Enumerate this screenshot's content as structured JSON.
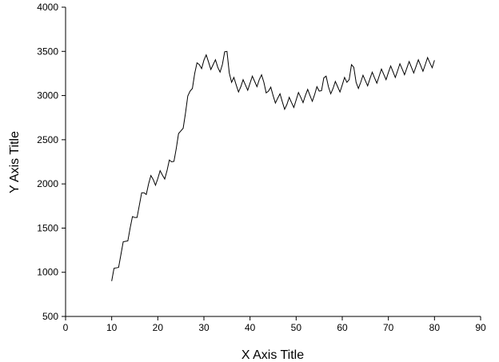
{
  "chart_data": {
    "type": "line",
    "x_label": "X Axis Title",
    "y_label": "Y Axis Title",
    "color": "#000000",
    "x": [
      10,
      10.5,
      11,
      11.5,
      12,
      12.5,
      13,
      13.5,
      14,
      14.5,
      15,
      15.5,
      16,
      16.5,
      17,
      17.5,
      18,
      18.5,
      19,
      19.5,
      20,
      20.5,
      21,
      21.5,
      22,
      22.5,
      23,
      23.5,
      24,
      24.5,
      25,
      25.5,
      26,
      26.5,
      27,
      27.5,
      28,
      28.5,
      29,
      29.5,
      30,
      30.5,
      31,
      31.5,
      32,
      32.5,
      33,
      33.5,
      34,
      34.5,
      35,
      35.5,
      36,
      36.5,
      37,
      37.5,
      38,
      38.5,
      39,
      39.5,
      40,
      40.5,
      41,
      41.5,
      42,
      42.5,
      43,
      43.5,
      44,
      44.5,
      45,
      45.5,
      46,
      46.5,
      47,
      47.5,
      48,
      48.5,
      49,
      49.5,
      50,
      50.5,
      51,
      51.5,
      52,
      52.5,
      53,
      53.5,
      54,
      54.5,
      55,
      55.5,
      56,
      56.5,
      57,
      57.5,
      58,
      58.5,
      59,
      59.5,
      60,
      60.5,
      61,
      61.5,
      62,
      62.5,
      63,
      63.5,
      64,
      64.5,
      65,
      65.5,
      66,
      66.5,
      67,
      67.5,
      68,
      68.5,
      69,
      69.5,
      70,
      70.5,
      71,
      71.5,
      72,
      72.5,
      73,
      73.5,
      74,
      74.5,
      75,
      75.5,
      76,
      76.5,
      77,
      77.5,
      78,
      78.5,
      79,
      79.5,
      80
    ],
    "values": [
      900,
      1045,
      1050,
      1055,
      1200,
      1345,
      1350,
      1355,
      1500,
      1630,
      1620,
      1620,
      1760,
      1900,
      1900,
      1880,
      2000,
      2095,
      2050,
      1985,
      2060,
      2150,
      2100,
      2055,
      2150,
      2270,
      2250,
      2255,
      2400,
      2570,
      2600,
      2630,
      2800,
      2995,
      3050,
      3080,
      3250,
      3370,
      3350,
      3305,
      3400,
      3460,
      3380,
      3295,
      3350,
      3405,
      3320,
      3265,
      3350,
      3495,
      3500,
      3255,
      3150,
      3205,
      3120,
      3040,
      3100,
      3180,
      3120,
      3060,
      3140,
      3220,
      3160,
      3100,
      3180,
      3235,
      3150,
      3030,
      3050,
      3095,
      3000,
      2915,
      2970,
      3020,
      2930,
      2845,
      2900,
      2980,
      2920,
      2865,
      2950,
      3035,
      2980,
      2920,
      3000,
      3070,
      3000,
      2935,
      3010,
      3100,
      3050,
      3055,
      3200,
      3220,
      3100,
      3020,
      3080,
      3160,
      3100,
      3040,
      3120,
      3205,
      3150,
      3180,
      3350,
      3320,
      3150,
      3080,
      3150,
      3230,
      3170,
      3110,
      3190,
      3265,
      3200,
      3140,
      3220,
      3300,
      3240,
      3180,
      3260,
      3335,
      3270,
      3205,
      3280,
      3360,
      3300,
      3235,
      3310,
      3385,
      3320,
      3255,
      3330,
      3405,
      3340,
      3275,
      3350,
      3430,
      3370,
      3315,
      3400
    ],
    "xlim": [
      0,
      90
    ],
    "xticks": [
      0,
      10,
      20,
      30,
      40,
      50,
      60,
      70,
      80,
      90
    ],
    "ylim": [
      500,
      4000
    ],
    "yticks": [
      500,
      1000,
      1500,
      2000,
      2500,
      3000,
      3500,
      4000
    ]
  }
}
